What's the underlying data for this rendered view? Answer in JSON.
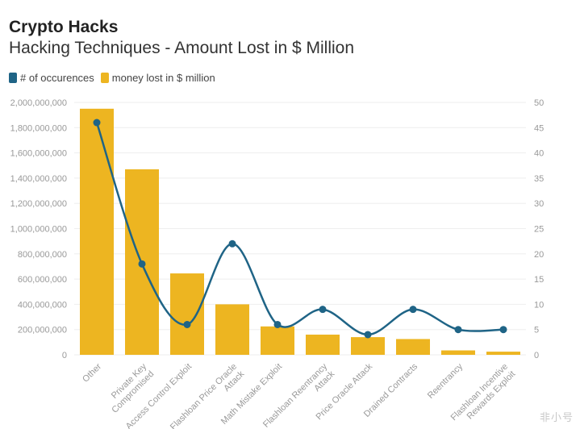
{
  "title": "Crypto Hacks",
  "subtitle": "Hacking Techniques - Amount Lost in $ Million",
  "legend": {
    "occurrences": "# of occurences",
    "money": "money lost in $ million"
  },
  "colors": {
    "bar": "#EDB521",
    "line": "#1F6486",
    "grid": "#EEEEEE"
  },
  "watermark": "非小号",
  "chart_data": {
    "type": "bar",
    "categories": [
      "Other",
      "Private Key Compromised",
      "Access Control Exploit",
      "Flashloan Price Oracle Attack",
      "Math Mistake Exploit",
      "Flashloan Reentrancy Attack",
      "Price Oracle Attack",
      "Drained Contracts",
      "Reentrancy",
      "Flashloan Incentive Rewards Exploit"
    ],
    "category_lines": [
      [
        "Other"
      ],
      [
        "Private Key",
        "Compromised"
      ],
      [
        "Access Control Exploit"
      ],
      [
        "Flashloan Price Oracle",
        "Attack"
      ],
      [
        "Math Mistake Exploit"
      ],
      [
        "Flashloan Reentrancy",
        "Attack"
      ],
      [
        "Price Oracle Attack"
      ],
      [
        "Drained Contracts"
      ],
      [
        "Reentrancy"
      ],
      [
        "Flashloan Incentive",
        "Rewards Exploit"
      ]
    ],
    "series": [
      {
        "name": "money lost in $ million",
        "type": "bar",
        "axis": "left",
        "values": [
          1950000000,
          1470000000,
          645000000,
          400000000,
          225000000,
          160000000,
          140000000,
          125000000,
          35000000,
          25000000
        ]
      },
      {
        "name": "# of occurences",
        "type": "line",
        "axis": "right",
        "values": [
          46,
          18,
          6,
          22,
          6,
          9,
          4,
          9,
          5,
          5
        ]
      }
    ],
    "ylim_left": [
      0,
      2000000000
    ],
    "yticks_left": [
      "0",
      "200,000,000",
      "400,000,000",
      "600,000,000",
      "800,000,000",
      "1,000,000,000",
      "1,200,000,000",
      "1,400,000,000",
      "1,600,000,000",
      "1,800,000,000",
      "2,000,000,000"
    ],
    "ylim_right": [
      0,
      50
    ],
    "yticks_right": [
      "0",
      "5",
      "10",
      "15",
      "20",
      "25",
      "30",
      "35",
      "40",
      "45",
      "50"
    ],
    "grid": true,
    "legend_position": "top-left"
  }
}
